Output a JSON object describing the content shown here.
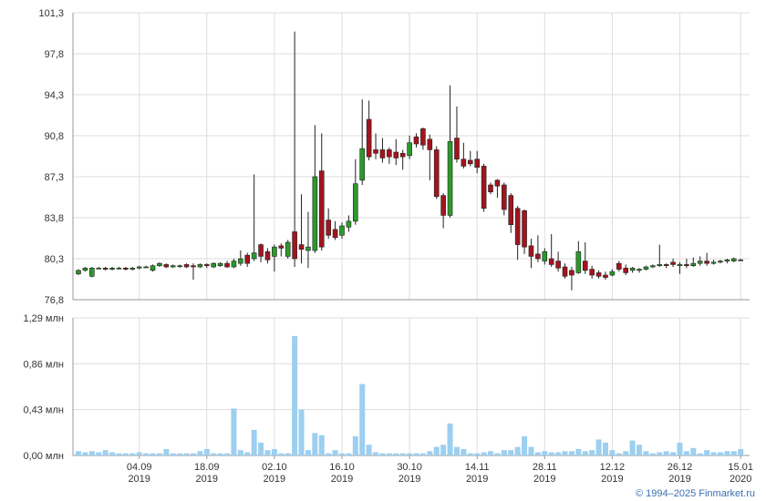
{
  "chart_data": [
    {
      "type": "candlestick",
      "ylim": [
        76.8,
        101.3
      ],
      "yticks": [
        {
          "value": 76.8,
          "label": "76,8"
        },
        {
          "value": 80.3,
          "label": "80,3"
        },
        {
          "value": 83.8,
          "label": "83,8"
        },
        {
          "value": 87.3,
          "label": "87,3"
        },
        {
          "value": 90.8,
          "label": "90,8"
        },
        {
          "value": 94.3,
          "label": "94,3"
        },
        {
          "value": 97.8,
          "label": "97,8"
        },
        {
          "value": 101.3,
          "label": "101,3"
        }
      ],
      "up_color": "#2a9a2a",
      "down_color": "#a3141e",
      "grid": true,
      "open": [
        79.0,
        79.3,
        78.8,
        79.5,
        79.5,
        79.4,
        79.5,
        79.5,
        79.4,
        79.5,
        79.6,
        79.3,
        79.7,
        79.8,
        79.6,
        79.7,
        79.8,
        79.7,
        79.6,
        79.8,
        79.6,
        79.7,
        79.9,
        79.6,
        79.9,
        80.6,
        80.3,
        81.5,
        80.9,
        80.5,
        81.4,
        80.5,
        82.6,
        81.5,
        81.0,
        81.0,
        87.8,
        83.6,
        82.8,
        82.3,
        83.0,
        83.5,
        87.0,
        92.2,
        89.6,
        89.6,
        89.6,
        89.4,
        89.3,
        89.1,
        90.7,
        91.4,
        90.5,
        89.6,
        85.7,
        84.0,
        90.6,
        88.8,
        88.7,
        88.8,
        88.2,
        86.6,
        87.0,
        86.6,
        85.7,
        84.6,
        84.4,
        81.4,
        80.7,
        80.1,
        80.3,
        80.1,
        79.6,
        79.3,
        79.1,
        80.1,
        79.4,
        79.1,
        78.9,
        78.9,
        79.9,
        79.5,
        79.3,
        79.3,
        79.4,
        79.6,
        79.7,
        79.8,
        80.0,
        79.7,
        79.8,
        79.7,
        79.9,
        80.1,
        79.9,
        80.0,
        80.1,
        80.1,
        80.2
      ],
      "high": [
        79.4,
        79.6,
        79.6,
        79.6,
        79.6,
        79.6,
        79.6,
        79.6,
        79.6,
        79.7,
        79.7,
        79.8,
        80.0,
        79.9,
        79.8,
        79.8,
        79.9,
        79.9,
        79.9,
        79.9,
        80.0,
        80.0,
        80.1,
        80.3,
        81.0,
        80.8,
        87.5,
        81.6,
        81.2,
        81.5,
        81.6,
        81.9,
        99.7,
        85.8,
        84.3,
        91.7,
        91.0,
        84.6,
        83.5,
        83.4,
        84.0,
        88.8,
        93.9,
        93.8,
        91.0,
        90.6,
        89.8,
        90.5,
        89.6,
        90.8,
        91.0,
        91.5,
        90.9,
        89.9,
        85.9,
        95.1,
        93.3,
        90.2,
        89.5,
        89.5,
        88.4,
        86.8,
        87.1,
        86.8,
        85.9,
        84.8,
        84.5,
        82.0,
        82.3,
        81.2,
        82.4,
        80.9,
        79.9,
        79.6,
        81.8,
        81.7,
        79.7,
        79.3,
        79.2,
        79.4,
        80.1,
        79.8,
        79.6,
        79.5,
        79.7,
        79.8,
        81.5,
        79.9,
        80.3,
        80.0,
        80.3,
        80.4,
        80.5,
        80.8,
        80.2,
        80.2,
        80.3,
        80.4,
        80.3
      ],
      "low": [
        78.9,
        79.2,
        78.7,
        79.4,
        79.3,
        79.3,
        79.4,
        79.3,
        79.3,
        79.4,
        79.5,
        79.2,
        79.6,
        79.5,
        79.5,
        79.5,
        79.5,
        78.5,
        79.5,
        79.5,
        79.5,
        79.6,
        79.5,
        79.5,
        79.7,
        79.6,
        80.1,
        80.0,
        79.9,
        79.2,
        80.5,
        80.3,
        79.6,
        79.9,
        79.5,
        80.8,
        81.0,
        82.0,
        81.9,
        82.0,
        82.6,
        83.2,
        86.6,
        88.7,
        88.8,
        88.5,
        88.4,
        88.3,
        87.9,
        88.8,
        89.8,
        89.6,
        87.0,
        85.4,
        82.9,
        83.8,
        88.5,
        88.0,
        88.2,
        87.6,
        84.3,
        85.8,
        85.5,
        84.0,
        82.5,
        80.2,
        80.7,
        79.5,
        80.0,
        79.8,
        79.6,
        79.2,
        78.6,
        77.6,
        79.0,
        79.0,
        78.6,
        78.6,
        78.5,
        78.8,
        79.2,
        78.9,
        79.1,
        79.1,
        79.3,
        79.5,
        79.6,
        79.5,
        79.6,
        79.0,
        79.5,
        79.6,
        79.7,
        79.7,
        79.8,
        79.9,
        79.9,
        80.0,
        80.1
      ],
      "close": [
        79.3,
        79.5,
        79.5,
        79.5,
        79.4,
        79.5,
        79.5,
        79.4,
        79.5,
        79.6,
        79.6,
        79.7,
        79.9,
        79.6,
        79.7,
        79.7,
        79.6,
        79.6,
        79.8,
        79.7,
        79.9,
        79.9,
        79.6,
        80.1,
        80.3,
        79.9,
        80.8,
        80.5,
        80.2,
        81.3,
        81.2,
        81.7,
        80.3,
        81.1,
        81.3,
        87.3,
        81.3,
        82.3,
        82.1,
        83.1,
        83.5,
        86.7,
        89.7,
        89.0,
        89.3,
        88.9,
        89.0,
        88.9,
        89.0,
        90.2,
        90.1,
        90.0,
        89.6,
        85.6,
        84.0,
        90.3,
        88.8,
        88.2,
        88.4,
        88.1,
        84.6,
        86.0,
        86.5,
        84.5,
        83.2,
        81.5,
        81.3,
        80.5,
        80.3,
        80.9,
        79.8,
        79.5,
        78.8,
        78.9,
        80.9,
        79.3,
        78.9,
        78.8,
        78.7,
        79.2,
        79.4,
        79.1,
        79.5,
        79.4,
        79.6,
        79.7,
        79.8,
        79.7,
        79.8,
        79.8,
        79.7,
        79.9,
        80.1,
        79.9,
        80.0,
        80.1,
        80.2,
        80.3,
        80.2
      ]
    },
    {
      "type": "bar",
      "color": "#9ccff0",
      "ylim": [
        0,
        1.29
      ],
      "yticks": [
        {
          "value": 0,
          "label": "0,00 млн"
        },
        {
          "value": 0.43,
          "label": "0,43 млн"
        },
        {
          "value": 0.86,
          "label": "0,86 млн"
        },
        {
          "value": 1.29,
          "label": "1,29 млн"
        }
      ],
      "grid": true,
      "categories": [
        null,
        null,
        null,
        null,
        null,
        null,
        null,
        null,
        null,
        "04.09\n2019",
        null,
        null,
        null,
        null,
        null,
        null,
        null,
        null,
        null,
        "18.09\n2019",
        null,
        null,
        null,
        null,
        null,
        null,
        null,
        null,
        null,
        "02.10\n2019",
        null,
        null,
        null,
        null,
        null,
        null,
        null,
        null,
        null,
        "16.10\n2019",
        null,
        null,
        null,
        null,
        null,
        null,
        null,
        null,
        null,
        "30.10\n2019",
        null,
        null,
        null,
        null,
        null,
        null,
        null,
        null,
        null,
        "14.11\n2019",
        null,
        null,
        null,
        null,
        null,
        null,
        null,
        null,
        null,
        "28.11\n2019",
        null,
        null,
        null,
        null,
        null,
        null,
        null,
        null,
        null,
        "12.12\n2019",
        null,
        null,
        null,
        null,
        null,
        null,
        null,
        null,
        null,
        "26.12\n2019",
        null,
        null,
        null,
        null,
        null,
        null,
        null,
        null,
        "15.01\n2020"
      ],
      "values": [
        0.04,
        0.03,
        0.04,
        0.03,
        0.05,
        0.03,
        0.02,
        0.02,
        0.02,
        0.03,
        0.02,
        0.02,
        0.02,
        0.06,
        0.02,
        0.02,
        0.02,
        0.02,
        0.04,
        0.06,
        0.02,
        0.02,
        0.02,
        0.44,
        0.05,
        0.03,
        0.24,
        0.12,
        0.05,
        0.06,
        0.02,
        0.02,
        1.12,
        0.43,
        0.05,
        0.21,
        0.19,
        0.02,
        0.05,
        0.02,
        0.02,
        0.18,
        0.67,
        0.1,
        0.03,
        0.02,
        0.02,
        0.02,
        0.02,
        0.02,
        0.02,
        0.02,
        0.04,
        0.08,
        0.1,
        0.3,
        0.08,
        0.06,
        0.02,
        0.02,
        0.03,
        0.04,
        0.02,
        0.05,
        0.05,
        0.08,
        0.18,
        0.08,
        0.03,
        0.04,
        0.03,
        0.03,
        0.04,
        0.04,
        0.06,
        0.04,
        0.05,
        0.15,
        0.12,
        0.05,
        0.02,
        0.04,
        0.14,
        0.1,
        0.04,
        0.02,
        0.03,
        0.04,
        0.03,
        0.12,
        0.04,
        0.07,
        0.02,
        0.05,
        0.03,
        0.03,
        0.04,
        0.04,
        0.06
      ]
    }
  ],
  "credit": "© 1994–2025 Finmarket.ru"
}
